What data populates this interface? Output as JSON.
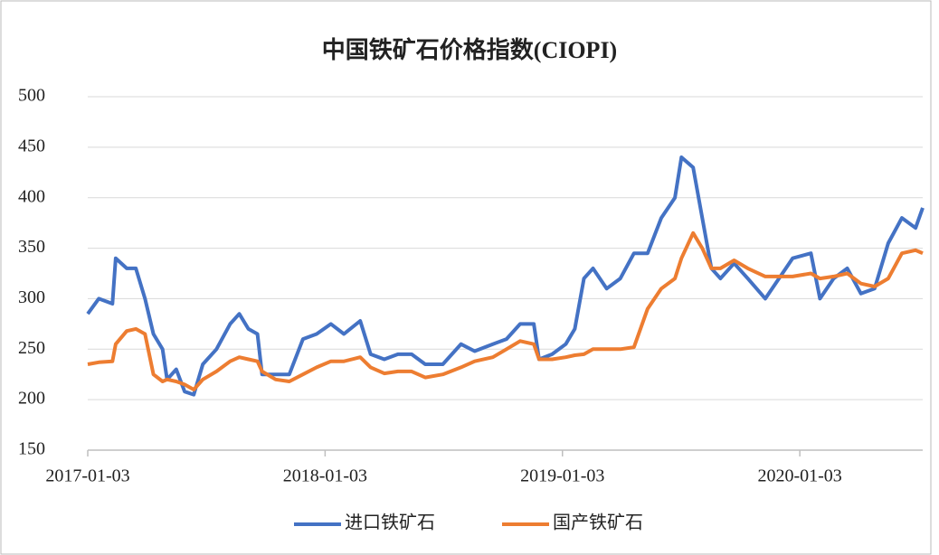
{
  "chart_data": {
    "type": "line",
    "title": "中国铁矿石价格指数(CIOPI)",
    "x": [
      "2017-01-03",
      "2017-01-20",
      "2017-02-10",
      "2017-02-15",
      "2017-03-04",
      "2017-03-18",
      "2017-04-01",
      "2017-04-14",
      "2017-04-28",
      "2017-05-05",
      "2017-05-19",
      "2017-06-01",
      "2017-06-15",
      "2017-06-29",
      "2017-07-20",
      "2017-08-10",
      "2017-08-24",
      "2017-09-07",
      "2017-09-21",
      "2017-09-28",
      "2017-10-19",
      "2017-11-09",
      "2017-11-30",
      "2017-12-21",
      "2018-01-12",
      "2018-02-01",
      "2018-02-26",
      "2018-03-14",
      "2018-04-04",
      "2018-04-25",
      "2018-05-16",
      "2018-06-06",
      "2018-07-03",
      "2018-07-31",
      "2018-08-21",
      "2018-09-18",
      "2018-10-09",
      "2018-10-30",
      "2018-11-20",
      "2018-11-28",
      "2018-12-18",
      "2019-01-08",
      "2019-01-22",
      "2019-02-05",
      "2019-02-19",
      "2019-03-12",
      "2019-04-02",
      "2019-04-23",
      "2019-05-14",
      "2019-06-04",
      "2019-06-25",
      "2019-07-05",
      "2019-07-23",
      "2019-08-06",
      "2019-08-20",
      "2019-09-03",
      "2019-09-24",
      "2019-10-15",
      "2019-11-11",
      "2019-12-02",
      "2019-12-23",
      "2020-01-20",
      "2020-02-03",
      "2020-02-24",
      "2020-03-16",
      "2020-04-06",
      "2020-04-27",
      "2020-05-18",
      "2020-06-08",
      "2020-06-29",
      "2020-07-10"
    ],
    "series": [
      {
        "name": "进口铁矿石",
        "color": "#4472c4",
        "values": [
          285,
          300,
          295,
          340,
          330,
          330,
          300,
          265,
          250,
          220,
          230,
          208,
          205,
          235,
          250,
          275,
          285,
          270,
          265,
          225,
          225,
          225,
          260,
          265,
          275,
          265,
          278,
          245,
          240,
          245,
          245,
          235,
          235,
          255,
          248,
          255,
          260,
          275,
          275,
          240,
          245,
          255,
          270,
          320,
          330,
          310,
          320,
          345,
          345,
          380,
          400,
          440,
          430,
          380,
          330,
          320,
          335,
          320,
          300,
          320,
          340,
          345,
          300,
          320,
          330,
          305,
          310,
          355,
          380,
          370,
          390
        ]
      },
      {
        "name": "国产铁矿石",
        "color": "#ed7d31",
        "values": [
          235,
          237,
          238,
          255,
          268,
          270,
          265,
          225,
          218,
          220,
          218,
          215,
          210,
          220,
          228,
          238,
          242,
          240,
          238,
          228,
          220,
          218,
          225,
          232,
          238,
          238,
          242,
          232,
          226,
          228,
          228,
          222,
          225,
          232,
          238,
          242,
          250,
          258,
          255,
          240,
          240,
          242,
          244,
          245,
          250,
          250,
          250,
          252,
          290,
          310,
          320,
          340,
          365,
          350,
          330,
          330,
          338,
          330,
          322,
          322,
          322,
          325,
          320,
          322,
          325,
          315,
          312,
          320,
          345,
          348,
          345
        ]
      }
    ],
    "xlim": [
      "2017-01-03",
      "2020-07-10"
    ],
    "xticks": [
      "2017-01-03",
      "2018-01-03",
      "2019-01-03",
      "2020-01-03"
    ],
    "ylim": [
      150,
      500
    ],
    "yticks": [
      150,
      200,
      250,
      300,
      350,
      400,
      450,
      500
    ],
    "grid": true,
    "legend": "bottom"
  }
}
